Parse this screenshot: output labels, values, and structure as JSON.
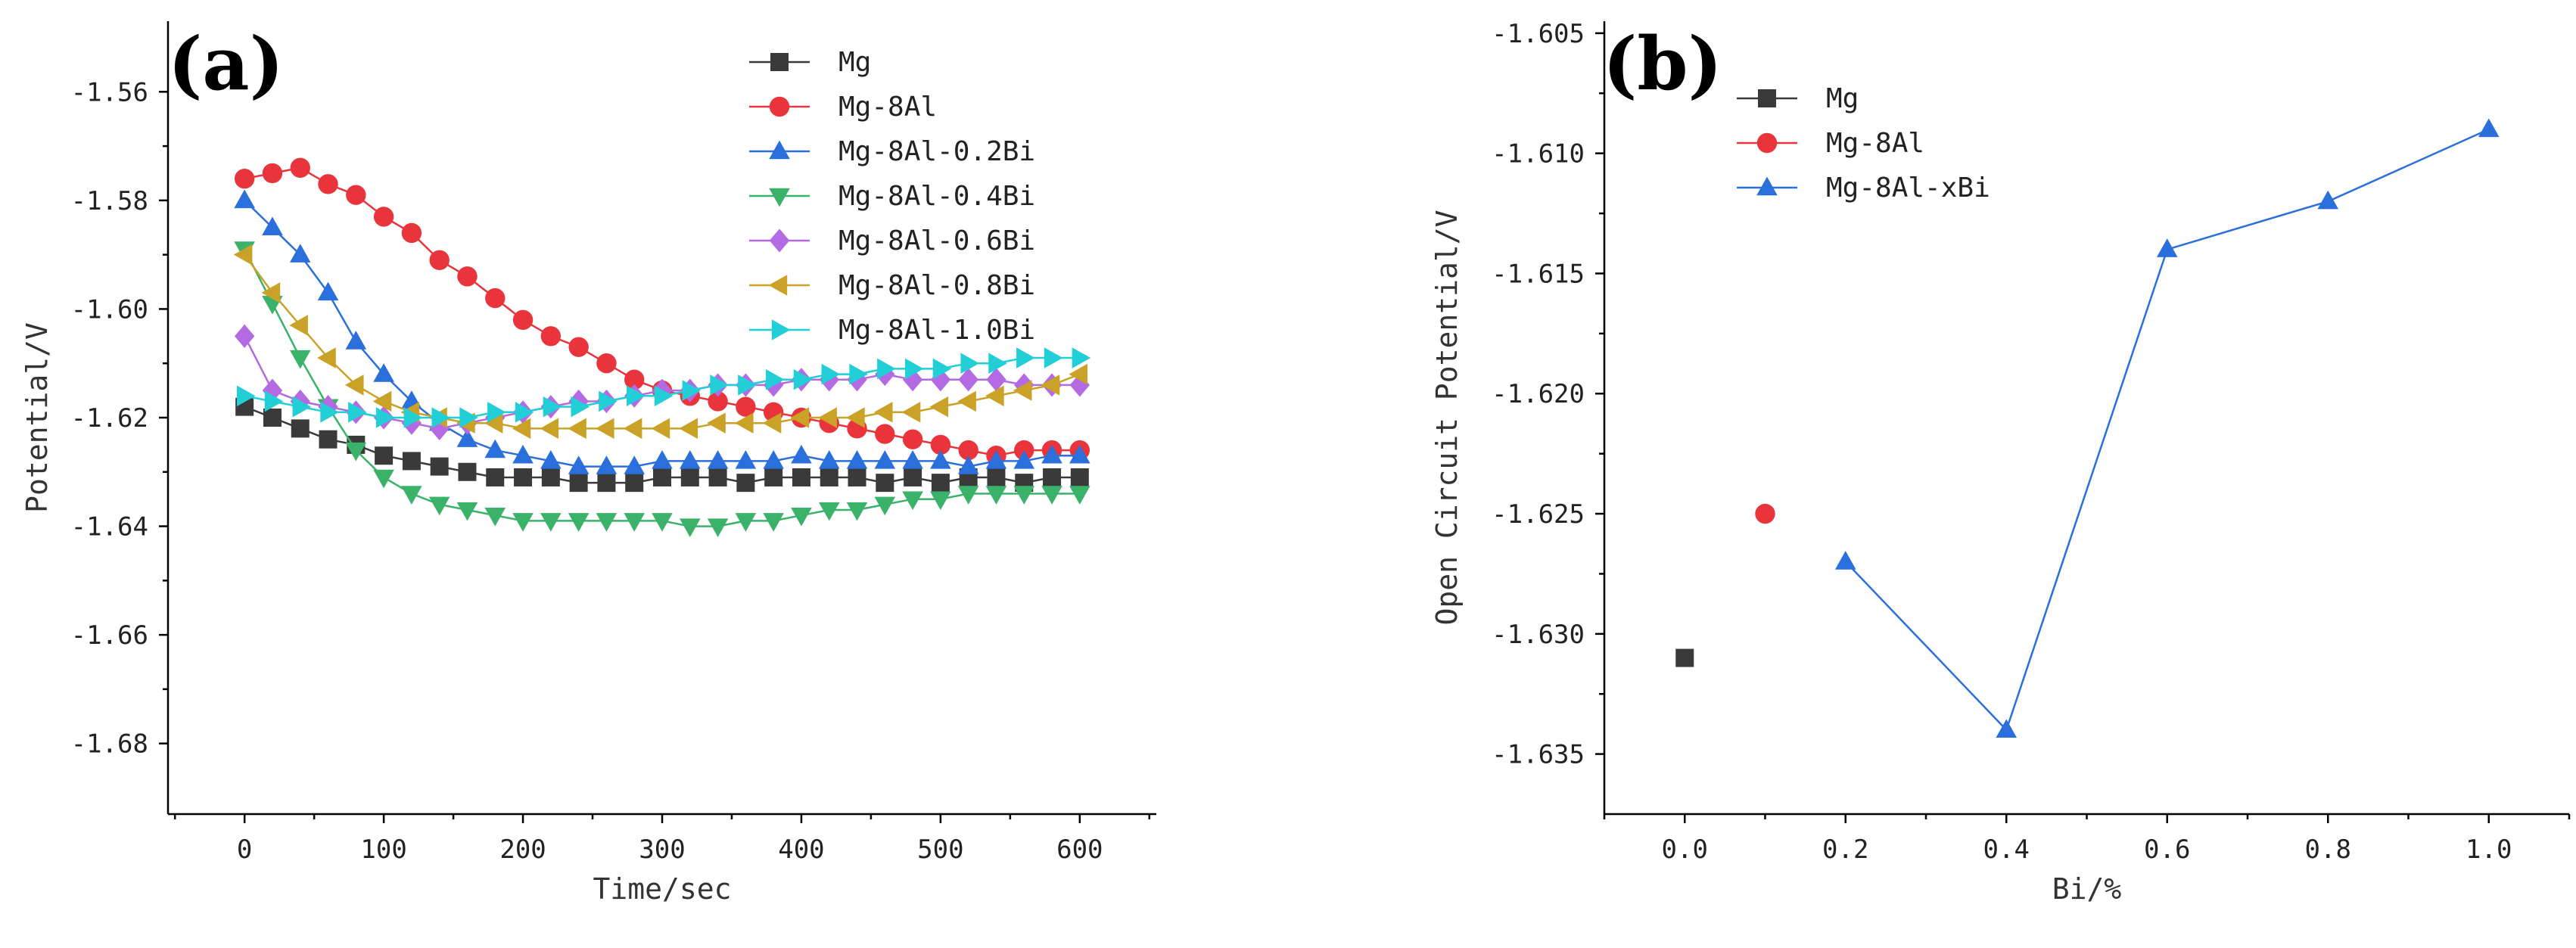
{
  "chart_data": [
    {
      "panel": "(a)",
      "type": "line",
      "xlabel": "Time/sec",
      "ylabel": "Potential/V",
      "xlim": [
        -55,
        655
      ],
      "ylim": [
        -1.693,
        -1.547
      ],
      "xticks": [
        0,
        100,
        200,
        300,
        400,
        500,
        600
      ],
      "yticks": [
        -1.56,
        -1.58,
        -1.6,
        -1.62,
        -1.64,
        -1.66,
        -1.68
      ],
      "ytick_labels": [
        "-1.56",
        "-1.58",
        "-1.60",
        "-1.62",
        "-1.64",
        "-1.66",
        "-1.68"
      ],
      "legend_position": "top-right",
      "series": [
        {
          "name": "Mg",
          "color": "#3a3a3a",
          "marker": "square",
          "x": [
            0,
            20,
            40,
            60,
            80,
            100,
            120,
            140,
            160,
            180,
            200,
            220,
            240,
            260,
            280,
            300,
            320,
            340,
            360,
            380,
            400,
            420,
            440,
            460,
            480,
            500,
            520,
            540,
            560,
            580,
            600
          ],
          "y": [
            -1.618,
            -1.62,
            -1.622,
            -1.624,
            -1.625,
            -1.627,
            -1.628,
            -1.629,
            -1.63,
            -1.631,
            -1.631,
            -1.631,
            -1.632,
            -1.632,
            -1.632,
            -1.631,
            -1.631,
            -1.631,
            -1.632,
            -1.631,
            -1.631,
            -1.631,
            -1.631,
            -1.632,
            -1.631,
            -1.632,
            -1.631,
            -1.631,
            -1.632,
            -1.631,
            -1.631
          ]
        },
        {
          "name": "Mg-8Al",
          "color": "#e8343a",
          "marker": "circle",
          "x": [
            0,
            20,
            40,
            60,
            80,
            100,
            120,
            140,
            160,
            180,
            200,
            220,
            240,
            260,
            280,
            300,
            320,
            340,
            360,
            380,
            400,
            420,
            440,
            460,
            480,
            500,
            520,
            540,
            560,
            580,
            600
          ],
          "y": [
            -1.576,
            -1.575,
            -1.574,
            -1.577,
            -1.579,
            -1.583,
            -1.586,
            -1.591,
            -1.594,
            -1.598,
            -1.602,
            -1.605,
            -1.607,
            -1.61,
            -1.613,
            -1.615,
            -1.616,
            -1.617,
            -1.618,
            -1.619,
            -1.62,
            -1.621,
            -1.622,
            -1.623,
            -1.624,
            -1.625,
            -1.626,
            -1.627,
            -1.626,
            -1.626,
            -1.626
          ]
        },
        {
          "name": "Mg-8Al-0.2Bi",
          "color": "#2a6fdb",
          "marker": "triangle-up",
          "x": [
            0,
            20,
            40,
            60,
            80,
            100,
            120,
            140,
            160,
            180,
            200,
            220,
            240,
            260,
            280,
            300,
            320,
            340,
            360,
            380,
            400,
            420,
            440,
            460,
            480,
            500,
            520,
            540,
            560,
            580,
            600
          ],
          "y": [
            -1.58,
            -1.585,
            -1.59,
            -1.597,
            -1.606,
            -1.612,
            -1.617,
            -1.621,
            -1.624,
            -1.626,
            -1.627,
            -1.628,
            -1.629,
            -1.629,
            -1.629,
            -1.628,
            -1.628,
            -1.628,
            -1.628,
            -1.628,
            -1.627,
            -1.628,
            -1.628,
            -1.628,
            -1.628,
            -1.628,
            -1.629,
            -1.628,
            -1.628,
            -1.627,
            -1.627
          ]
        },
        {
          "name": "Mg-8Al-0.4Bi",
          "color": "#3bb26a",
          "marker": "triangle-down",
          "x": [
            0,
            20,
            40,
            60,
            80,
            100,
            120,
            140,
            160,
            180,
            200,
            220,
            240,
            260,
            280,
            300,
            320,
            340,
            360,
            380,
            400,
            420,
            440,
            460,
            480,
            500,
            520,
            540,
            560,
            580,
            600
          ],
          "y": [
            -1.589,
            -1.599,
            -1.609,
            -1.618,
            -1.626,
            -1.631,
            -1.634,
            -1.636,
            -1.637,
            -1.638,
            -1.639,
            -1.639,
            -1.639,
            -1.639,
            -1.639,
            -1.639,
            -1.64,
            -1.64,
            -1.639,
            -1.639,
            -1.638,
            -1.637,
            -1.637,
            -1.636,
            -1.635,
            -1.635,
            -1.634,
            -1.634,
            -1.634,
            -1.634,
            -1.634
          ]
        },
        {
          "name": "Mg-8Al-0.6Bi",
          "color": "#b36ae2",
          "marker": "diamond",
          "x": [
            0,
            20,
            40,
            60,
            80,
            100,
            120,
            140,
            160,
            180,
            200,
            220,
            240,
            260,
            280,
            300,
            320,
            340,
            360,
            380,
            400,
            420,
            440,
            460,
            480,
            500,
            520,
            540,
            560,
            580,
            600
          ],
          "y": [
            -1.605,
            -1.615,
            -1.617,
            -1.618,
            -1.619,
            -1.62,
            -1.621,
            -1.622,
            -1.621,
            -1.62,
            -1.619,
            -1.618,
            -1.617,
            -1.617,
            -1.616,
            -1.615,
            -1.615,
            -1.614,
            -1.614,
            -1.614,
            -1.613,
            -1.613,
            -1.613,
            -1.612,
            -1.613,
            -1.613,
            -1.613,
            -1.613,
            -1.614,
            -1.614,
            -1.614
          ]
        },
        {
          "name": "Mg-8Al-0.8Bi",
          "color": "#c9a227",
          "marker": "triangle-left",
          "x": [
            0,
            20,
            40,
            60,
            80,
            100,
            120,
            140,
            160,
            180,
            200,
            220,
            240,
            260,
            280,
            300,
            320,
            340,
            360,
            380,
            400,
            420,
            440,
            460,
            480,
            500,
            520,
            540,
            560,
            580,
            600
          ],
          "y": [
            -1.59,
            -1.597,
            -1.603,
            -1.609,
            -1.614,
            -1.617,
            -1.619,
            -1.62,
            -1.621,
            -1.621,
            -1.622,
            -1.622,
            -1.622,
            -1.622,
            -1.622,
            -1.622,
            -1.622,
            -1.621,
            -1.621,
            -1.621,
            -1.62,
            -1.62,
            -1.62,
            -1.619,
            -1.619,
            -1.618,
            -1.617,
            -1.616,
            -1.615,
            -1.614,
            -1.612
          ]
        },
        {
          "name": "Mg-8Al-1.0Bi",
          "color": "#22cfd6",
          "marker": "triangle-right",
          "x": [
            0,
            20,
            40,
            60,
            80,
            100,
            120,
            140,
            160,
            180,
            200,
            220,
            240,
            260,
            280,
            300,
            320,
            340,
            360,
            380,
            400,
            420,
            440,
            460,
            480,
            500,
            520,
            540,
            560,
            580,
            600
          ],
          "y": [
            -1.616,
            -1.617,
            -1.618,
            -1.619,
            -1.619,
            -1.62,
            -1.62,
            -1.62,
            -1.62,
            -1.619,
            -1.619,
            -1.618,
            -1.618,
            -1.617,
            -1.616,
            -1.616,
            -1.615,
            -1.614,
            -1.614,
            -1.613,
            -1.613,
            -1.612,
            -1.612,
            -1.611,
            -1.611,
            -1.611,
            -1.61,
            -1.61,
            -1.609,
            -1.609,
            -1.609
          ]
        }
      ]
    },
    {
      "panel": "(b)",
      "type": "scatter",
      "xlabel": "Bi/%",
      "ylabel": "Open Circuit Potential/V",
      "xlim": [
        -0.1,
        1.1
      ],
      "ylim": [
        -1.6375,
        -1.6045
      ],
      "xticks": [
        0.0,
        0.2,
        0.4,
        0.6,
        0.8,
        1.0
      ],
      "xtick_labels": [
        "0.0",
        "0.2",
        "0.4",
        "0.6",
        "0.8",
        "1.0"
      ],
      "yticks": [
        -1.605,
        -1.61,
        -1.615,
        -1.62,
        -1.625,
        -1.63,
        -1.635
      ],
      "ytick_labels": [
        "-1.605",
        "-1.610",
        "-1.615",
        "-1.620",
        "-1.625",
        "-1.630",
        "-1.635"
      ],
      "legend_position": "top-left",
      "series": [
        {
          "name": "Mg",
          "color": "#3a3a3a",
          "marker": "square",
          "line": false,
          "x": [
            0.0
          ],
          "y": [
            -1.631
          ]
        },
        {
          "name": "Mg-8Al",
          "color": "#e8343a",
          "marker": "circle",
          "line": false,
          "x": [
            0.1
          ],
          "y": [
            -1.625
          ]
        },
        {
          "name": "Mg-8Al-xBi",
          "color": "#2a6fdb",
          "marker": "triangle-up",
          "line": true,
          "x": [
            0.2,
            0.4,
            0.6,
            0.8,
            1.0
          ],
          "y": [
            -1.627,
            -1.634,
            -1.614,
            -1.612,
            -1.609
          ]
        }
      ]
    }
  ]
}
